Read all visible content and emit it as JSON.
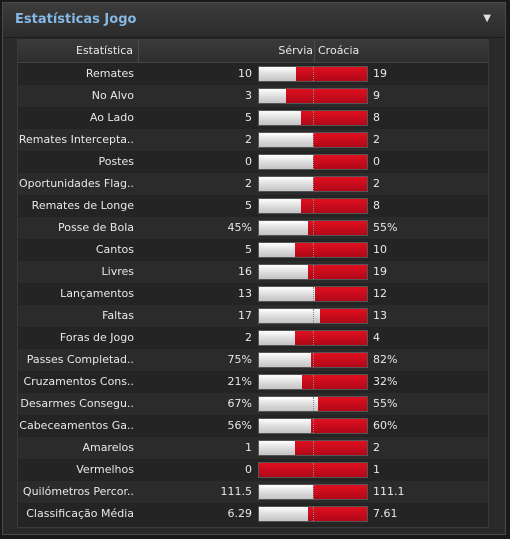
{
  "panel": {
    "title": "Estatísticas Jogo",
    "menu_icon": "triangle-down-icon"
  },
  "header": {
    "stat_label": "Estatística",
    "team_a": "Sérvia",
    "team_b": "Croácia"
  },
  "colors": {
    "team_a_bar": "#e6e6e6",
    "team_b_bar": "#c8101e",
    "title": "#86b8e6"
  },
  "rows": [
    {
      "label": "Remates",
      "left": "10",
      "right": "19",
      "share": 0.345
    },
    {
      "label": "No Alvo",
      "left": "3",
      "right": "9",
      "share": 0.25
    },
    {
      "label": "Ao Lado",
      "left": "5",
      "right": "8",
      "share": 0.385
    },
    {
      "label": "Remates Intercepta..",
      "left": "2",
      "right": "2",
      "share": 0.5
    },
    {
      "label": "Postes",
      "left": "0",
      "right": "0",
      "share": 0.5
    },
    {
      "label": "Oportunidades Flag..",
      "left": "2",
      "right": "2",
      "share": 0.5
    },
    {
      "label": "Remates de Longe",
      "left": "5",
      "right": "8",
      "share": 0.385
    },
    {
      "label": "Posse de Bola",
      "left": "45%",
      "right": "55%",
      "share": 0.45
    },
    {
      "label": "Cantos",
      "left": "5",
      "right": "10",
      "share": 0.333
    },
    {
      "label": "Livres",
      "left": "16",
      "right": "19",
      "share": 0.457
    },
    {
      "label": "Lançamentos",
      "left": "13",
      "right": "12",
      "share": 0.52
    },
    {
      "label": "Faltas",
      "left": "17",
      "right": "13",
      "share": 0.567
    },
    {
      "label": "Foras de Jogo",
      "left": "2",
      "right": "4",
      "share": 0.333
    },
    {
      "label": "Passes Completad..",
      "left": "75%",
      "right": "82%",
      "share": 0.478
    },
    {
      "label": "Cruzamentos Cons..",
      "left": "21%",
      "right": "32%",
      "share": 0.396
    },
    {
      "label": "Desarmes Consegu..",
      "left": "67%",
      "right": "55%",
      "share": 0.549
    },
    {
      "label": "Cabeceamentos Ga..",
      "left": "56%",
      "right": "60%",
      "share": 0.483
    },
    {
      "label": "Amarelos",
      "left": "1",
      "right": "2",
      "share": 0.333
    },
    {
      "label": "Vermelhos",
      "left": "0",
      "right": "1",
      "share": 0.0
    },
    {
      "label": "Quilómetros Percor..",
      "left": "111.5",
      "right": "111.1",
      "share": 0.501
    },
    {
      "label": "Classificação Média",
      "left": "6.29",
      "right": "7.61",
      "share": 0.453
    }
  ]
}
